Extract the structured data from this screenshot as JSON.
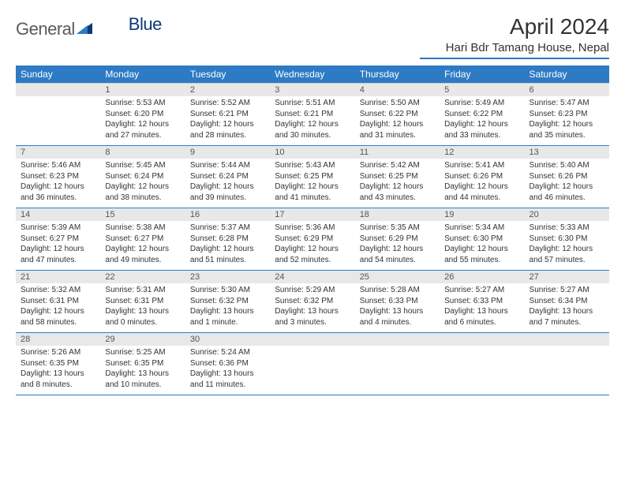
{
  "logo": {
    "text1": "General",
    "text2": "Blue"
  },
  "title": "April 2024",
  "location": "Hari Bdr Tamang House, Nepal",
  "colors": {
    "header_bg": "#2d7bc4",
    "header_text": "#ffffff",
    "date_bg": "#e8e8e8",
    "row_divider": "#2d7bc4",
    "logo_blue": "#0a3a7a"
  },
  "day_headers": [
    "Sunday",
    "Monday",
    "Tuesday",
    "Wednesday",
    "Thursday",
    "Friday",
    "Saturday"
  ],
  "weeks": [
    {
      "dates": [
        "",
        "1",
        "2",
        "3",
        "4",
        "5",
        "6"
      ],
      "cells": [
        null,
        {
          "sr": "Sunrise: 5:53 AM",
          "ss": "Sunset: 6:20 PM",
          "dl": "Daylight: 12 hours and 27 minutes."
        },
        {
          "sr": "Sunrise: 5:52 AM",
          "ss": "Sunset: 6:21 PM",
          "dl": "Daylight: 12 hours and 28 minutes."
        },
        {
          "sr": "Sunrise: 5:51 AM",
          "ss": "Sunset: 6:21 PM",
          "dl": "Daylight: 12 hours and 30 minutes."
        },
        {
          "sr": "Sunrise: 5:50 AM",
          "ss": "Sunset: 6:22 PM",
          "dl": "Daylight: 12 hours and 31 minutes."
        },
        {
          "sr": "Sunrise: 5:49 AM",
          "ss": "Sunset: 6:22 PM",
          "dl": "Daylight: 12 hours and 33 minutes."
        },
        {
          "sr": "Sunrise: 5:47 AM",
          "ss": "Sunset: 6:23 PM",
          "dl": "Daylight: 12 hours and 35 minutes."
        }
      ]
    },
    {
      "dates": [
        "7",
        "8",
        "9",
        "10",
        "11",
        "12",
        "13"
      ],
      "cells": [
        {
          "sr": "Sunrise: 5:46 AM",
          "ss": "Sunset: 6:23 PM",
          "dl": "Daylight: 12 hours and 36 minutes."
        },
        {
          "sr": "Sunrise: 5:45 AM",
          "ss": "Sunset: 6:24 PM",
          "dl": "Daylight: 12 hours and 38 minutes."
        },
        {
          "sr": "Sunrise: 5:44 AM",
          "ss": "Sunset: 6:24 PM",
          "dl": "Daylight: 12 hours and 39 minutes."
        },
        {
          "sr": "Sunrise: 5:43 AM",
          "ss": "Sunset: 6:25 PM",
          "dl": "Daylight: 12 hours and 41 minutes."
        },
        {
          "sr": "Sunrise: 5:42 AM",
          "ss": "Sunset: 6:25 PM",
          "dl": "Daylight: 12 hours and 43 minutes."
        },
        {
          "sr": "Sunrise: 5:41 AM",
          "ss": "Sunset: 6:26 PM",
          "dl": "Daylight: 12 hours and 44 minutes."
        },
        {
          "sr": "Sunrise: 5:40 AM",
          "ss": "Sunset: 6:26 PM",
          "dl": "Daylight: 12 hours and 46 minutes."
        }
      ]
    },
    {
      "dates": [
        "14",
        "15",
        "16",
        "17",
        "18",
        "19",
        "20"
      ],
      "cells": [
        {
          "sr": "Sunrise: 5:39 AM",
          "ss": "Sunset: 6:27 PM",
          "dl": "Daylight: 12 hours and 47 minutes."
        },
        {
          "sr": "Sunrise: 5:38 AM",
          "ss": "Sunset: 6:27 PM",
          "dl": "Daylight: 12 hours and 49 minutes."
        },
        {
          "sr": "Sunrise: 5:37 AM",
          "ss": "Sunset: 6:28 PM",
          "dl": "Daylight: 12 hours and 51 minutes."
        },
        {
          "sr": "Sunrise: 5:36 AM",
          "ss": "Sunset: 6:29 PM",
          "dl": "Daylight: 12 hours and 52 minutes."
        },
        {
          "sr": "Sunrise: 5:35 AM",
          "ss": "Sunset: 6:29 PM",
          "dl": "Daylight: 12 hours and 54 minutes."
        },
        {
          "sr": "Sunrise: 5:34 AM",
          "ss": "Sunset: 6:30 PM",
          "dl": "Daylight: 12 hours and 55 minutes."
        },
        {
          "sr": "Sunrise: 5:33 AM",
          "ss": "Sunset: 6:30 PM",
          "dl": "Daylight: 12 hours and 57 minutes."
        }
      ]
    },
    {
      "dates": [
        "21",
        "22",
        "23",
        "24",
        "25",
        "26",
        "27"
      ],
      "cells": [
        {
          "sr": "Sunrise: 5:32 AM",
          "ss": "Sunset: 6:31 PM",
          "dl": "Daylight: 12 hours and 58 minutes."
        },
        {
          "sr": "Sunrise: 5:31 AM",
          "ss": "Sunset: 6:31 PM",
          "dl": "Daylight: 13 hours and 0 minutes."
        },
        {
          "sr": "Sunrise: 5:30 AM",
          "ss": "Sunset: 6:32 PM",
          "dl": "Daylight: 13 hours and 1 minute."
        },
        {
          "sr": "Sunrise: 5:29 AM",
          "ss": "Sunset: 6:32 PM",
          "dl": "Daylight: 13 hours and 3 minutes."
        },
        {
          "sr": "Sunrise: 5:28 AM",
          "ss": "Sunset: 6:33 PM",
          "dl": "Daylight: 13 hours and 4 minutes."
        },
        {
          "sr": "Sunrise: 5:27 AM",
          "ss": "Sunset: 6:33 PM",
          "dl": "Daylight: 13 hours and 6 minutes."
        },
        {
          "sr": "Sunrise: 5:27 AM",
          "ss": "Sunset: 6:34 PM",
          "dl": "Daylight: 13 hours and 7 minutes."
        }
      ]
    },
    {
      "dates": [
        "28",
        "29",
        "30",
        "",
        "",
        "",
        ""
      ],
      "cells": [
        {
          "sr": "Sunrise: 5:26 AM",
          "ss": "Sunset: 6:35 PM",
          "dl": "Daylight: 13 hours and 8 minutes."
        },
        {
          "sr": "Sunrise: 5:25 AM",
          "ss": "Sunset: 6:35 PM",
          "dl": "Daylight: 13 hours and 10 minutes."
        },
        {
          "sr": "Sunrise: 5:24 AM",
          "ss": "Sunset: 6:36 PM",
          "dl": "Daylight: 13 hours and 11 minutes."
        },
        null,
        null,
        null,
        null
      ]
    }
  ]
}
